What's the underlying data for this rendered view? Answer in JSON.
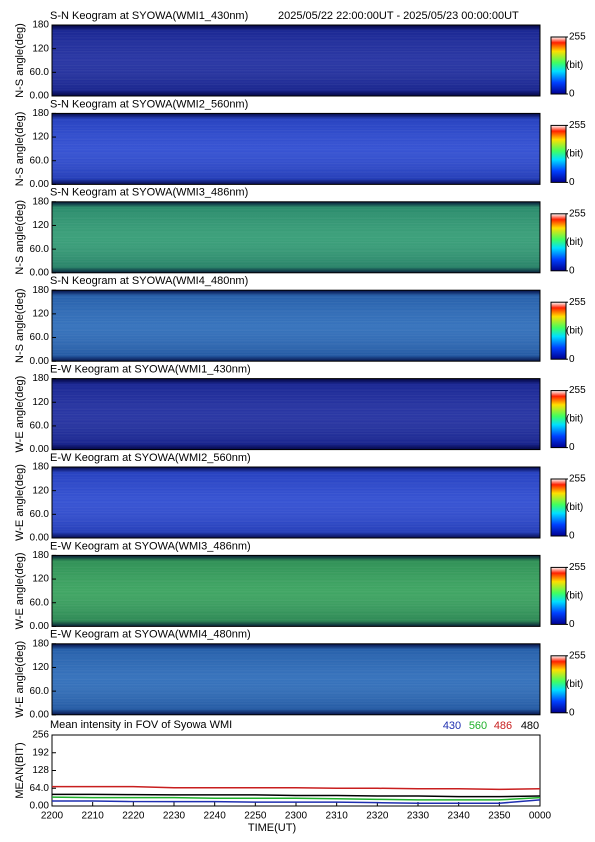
{
  "chart_data": [
    {
      "type": "keogram",
      "title": "S-N Keogram at SYOWA(WMI1_430nm)",
      "subtitle": "2025/05/22 22:00:00UT - 2025/05/23 00:00:00UT",
      "ylabel": "N-S angle(deg)",
      "ylim": [
        0,
        180
      ],
      "yticks": [
        {
          "value": 0,
          "label": "0.00"
        },
        {
          "value": 60,
          "label": "60.0"
        },
        120,
        180
      ],
      "color": "#1c2a9e",
      "clim": [
        0,
        255
      ],
      "cticks": [
        0,
        255
      ],
      "clabel": "(bit)"
    },
    {
      "type": "keogram",
      "title": "S-N Keogram at SYOWA(WMI2_560nm)",
      "ylabel": "N-S angle(deg)",
      "ylim": [
        0,
        180
      ],
      "yticks": [
        {
          "value": 0,
          "label": "0.00"
        },
        {
          "value": 60,
          "label": "60.0"
        },
        120,
        180
      ],
      "color": "#2a48d0",
      "clim": [
        0,
        255
      ],
      "cticks": [
        0,
        255
      ],
      "clabel": "(bit)"
    },
    {
      "type": "keogram",
      "title": "S-N Keogram at SYOWA(WMI3_486nm)",
      "ylabel": "N-S angle(deg)",
      "ylim": [
        0,
        180
      ],
      "yticks": [
        {
          "value": 0,
          "label": "0.00"
        },
        {
          "value": 60,
          "label": "60.0"
        },
        120,
        180
      ],
      "color": "#2f9a72",
      "clim": [
        0,
        255
      ],
      "cticks": [
        0,
        255
      ],
      "clabel": "(bit)"
    },
    {
      "type": "keogram",
      "title": "S-N Keogram at SYOWA(WMI4_480nm)",
      "ylabel": "N-S angle(deg)",
      "ylim": [
        0,
        180
      ],
      "yticks": [
        {
          "value": 0,
          "label": "0.00"
        },
        {
          "value": 60,
          "label": "60.0"
        },
        120,
        180
      ],
      "color": "#2a6ab8",
      "clim": [
        0,
        255
      ],
      "cticks": [
        0,
        255
      ],
      "clabel": "(bit)"
    },
    {
      "type": "keogram",
      "title": "E-W Keogram at SYOWA(WMI1_430nm)",
      "ylabel": "W-E angle(deg)",
      "ylim": [
        0,
        180
      ],
      "yticks": [
        {
          "value": 0,
          "label": "0.00"
        },
        {
          "value": 60,
          "label": "60.0"
        },
        120,
        180
      ],
      "color": "#1c2a9e",
      "clim": [
        0,
        255
      ],
      "cticks": [
        0,
        255
      ],
      "clabel": "(bit)"
    },
    {
      "type": "keogram",
      "title": "E-W Keogram at SYOWA(WMI2_560nm)",
      "ylabel": "W-E angle(deg)",
      "ylim": [
        0,
        180
      ],
      "yticks": [
        {
          "value": 0,
          "label": "0.00"
        },
        {
          "value": 60,
          "label": "60.0"
        },
        120,
        180
      ],
      "color": "#2a48d0",
      "clim": [
        0,
        255
      ],
      "cticks": [
        0,
        255
      ],
      "clabel": "(bit)"
    },
    {
      "type": "keogram",
      "title": "E-W Keogram at SYOWA(WMI3_486nm)",
      "ylabel": "W-E angle(deg)",
      "ylim": [
        0,
        180
      ],
      "yticks": [
        {
          "value": 0,
          "label": "0.00"
        },
        {
          "value": 60,
          "label": "60.0"
        },
        120,
        180
      ],
      "color": "#34a05a",
      "clim": [
        0,
        255
      ],
      "cticks": [
        0,
        255
      ],
      "clabel": "(bit)"
    },
    {
      "type": "keogram",
      "title": "E-W Keogram at SYOWA(WMI4_480nm)",
      "ylabel": "W-E angle(deg)",
      "ylim": [
        0,
        180
      ],
      "yticks": [
        {
          "value": 0,
          "label": "0.00"
        },
        {
          "value": 60,
          "label": "60.0"
        },
        120,
        180
      ],
      "color": "#2a6ab8",
      "clim": [
        0,
        255
      ],
      "cticks": [
        0,
        255
      ],
      "clabel": "(bit)"
    },
    {
      "type": "line",
      "title": "Mean intensity in FOV of Syowa WMI",
      "ylabel": "MEAN(BIT)",
      "xlabel": "TIME(UT)",
      "x": [
        0,
        10,
        20,
        30,
        40,
        50,
        60,
        70,
        80,
        90,
        100,
        110,
        120
      ],
      "xlim": [
        0,
        120
      ],
      "xticks": [
        {
          "value": 0,
          "label": "2200"
        },
        {
          "value": 10,
          "label": "2210"
        },
        {
          "value": 20,
          "label": "2220"
        },
        {
          "value": 30,
          "label": "2230"
        },
        {
          "value": 40,
          "label": "2240"
        },
        {
          "value": 50,
          "label": "2250"
        },
        {
          "value": 60,
          "label": "2300"
        },
        {
          "value": 70,
          "label": "2310"
        },
        {
          "value": 80,
          "label": "2320"
        },
        {
          "value": 90,
          "label": "2330"
        },
        {
          "value": 100,
          "label": "2340"
        },
        {
          "value": 110,
          "label": "2350"
        },
        {
          "value": 120,
          "label": "0000"
        }
      ],
      "ylim": [
        0,
        256
      ],
      "yticks": [
        {
          "value": 0,
          "label": "0.00"
        },
        {
          "value": 64,
          "label": "64.0"
        },
        128,
        192,
        256
      ],
      "series": [
        {
          "name": "430",
          "color": "#1f2fb0",
          "values": [
            18,
            18,
            16,
            16,
            16,
            14,
            14,
            14,
            12,
            10,
            10,
            10,
            22
          ]
        },
        {
          "name": "560",
          "color": "#1fb02a",
          "values": [
            32,
            30,
            30,
            30,
            28,
            28,
            28,
            26,
            24,
            22,
            22,
            22,
            30
          ]
        },
        {
          "name": "486",
          "color": "#c81e1e",
          "values": [
            70,
            70,
            70,
            66,
            66,
            66,
            66,
            64,
            64,
            62,
            62,
            60,
            62
          ]
        },
        {
          "name": "480",
          "color": "#000000",
          "values": [
            42,
            42,
            41,
            40,
            40,
            40,
            38,
            38,
            36,
            36,
            34,
            34,
            36
          ]
        }
      ]
    }
  ]
}
